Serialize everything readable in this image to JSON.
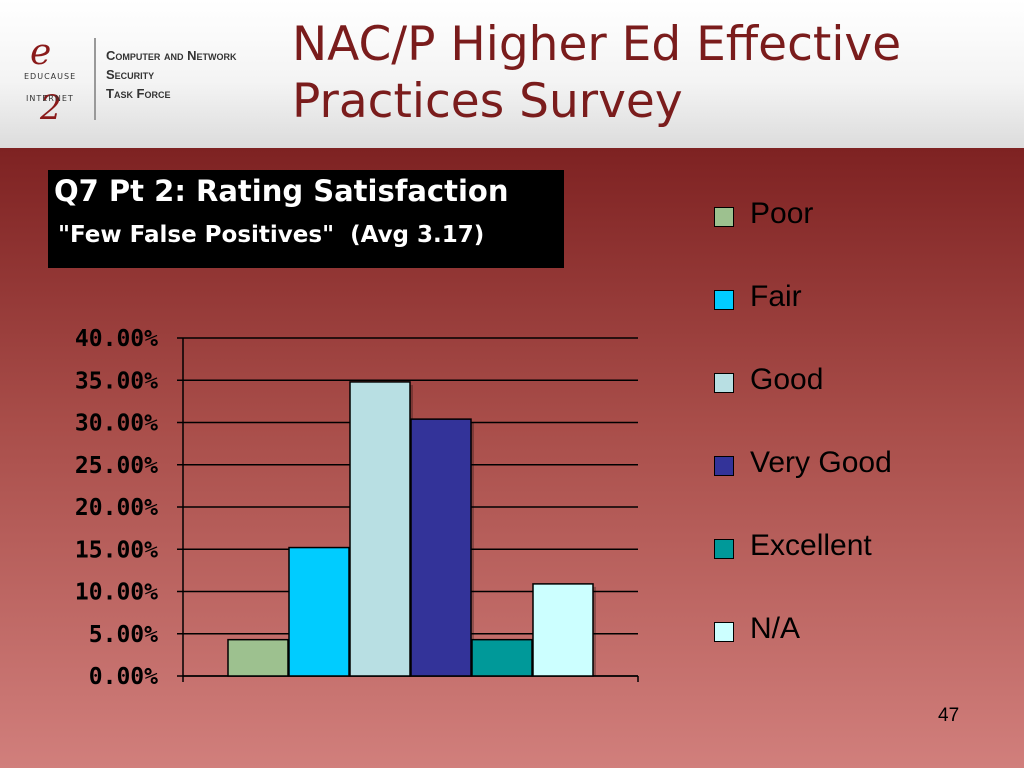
{
  "slide": {
    "title": "NAC/P Higher Ed Effective\nPractices Survey",
    "page_number": "47"
  },
  "logo": {
    "e": "e",
    "educause": "EDUCAUSE",
    "internet": "INTERNET",
    "two": "2",
    "task_force_line1": "Computer and Network",
    "task_force_line2": "Security",
    "task_force_line3": "Task Force"
  },
  "question": {
    "line1": "Q7 Pt 2: Rating Satisfaction",
    "line2": "\"Few False Positives\"  (Avg 3.17)"
  },
  "colors": {
    "title": "#7a1c1c",
    "poor": "#9dc18f",
    "fair": "#00ccff",
    "good": "#b8dfe3",
    "very_good": "#333399",
    "excellent": "#009999",
    "na": "#ccffff"
  },
  "chart_data": {
    "type": "bar",
    "title": "Q7 Pt 2: Rating Satisfaction \"Few False Positives\" (Avg 3.17)",
    "categories": [
      "Poor",
      "Fair",
      "Good",
      "Very Good",
      "Excellent",
      "N/A"
    ],
    "values": [
      4.3,
      15.2,
      34.8,
      30.4,
      4.3,
      10.9
    ],
    "colors": [
      "#9dc18f",
      "#00ccff",
      "#b8dfe3",
      "#333399",
      "#009999",
      "#ccffff"
    ],
    "ylim": [
      0,
      40
    ],
    "yticks": [
      0,
      5,
      10,
      15,
      20,
      25,
      30,
      35,
      40
    ],
    "ytick_labels": [
      "0.00%",
      "5.00%",
      "10.00%",
      "15.00%",
      "20.00%",
      "25.00%",
      "30.00%",
      "35.00%",
      "40.00%"
    ],
    "grid": true,
    "legend": "right",
    "xlabel": "",
    "ylabel": ""
  }
}
